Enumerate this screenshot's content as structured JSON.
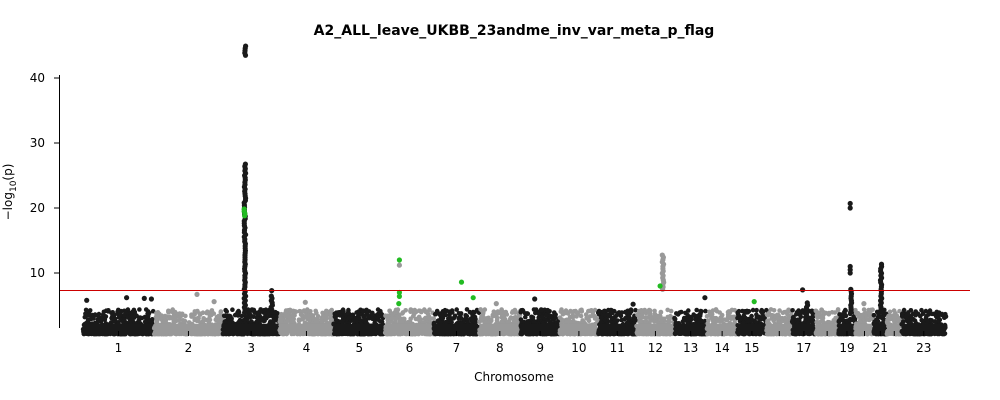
{
  "chart_data": {
    "type": "scatter",
    "title": "A2_ALL_leave_UKBB_23andme_inv_var_meta_p_flag",
    "xlabel": "Chromosome",
    "ylabel_main": "−log",
    "ylabel_sub": "10",
    "ylabel_tail": "(p)",
    "ylim": [
      0,
      46
    ],
    "yticks": [
      "10",
      "20",
      "30",
      "40"
    ],
    "ytick_values": [
      10,
      20,
      30,
      40
    ],
    "grid": false,
    "significance_line": 7.3,
    "colors": {
      "odd": "#1a1a1a",
      "even": "#999999",
      "highlight": "#22bb22",
      "threshold": "#cc0000"
    },
    "chromosomes": [
      {
        "name": "1",
        "label": "1",
        "start": 0,
        "len": 249
      },
      {
        "name": "2",
        "label": "2",
        "start": 249,
        "len": 242
      },
      {
        "name": "3",
        "label": "3",
        "start": 491,
        "len": 198
      },
      {
        "name": "4",
        "label": "4",
        "start": 689,
        "len": 190
      },
      {
        "name": "5",
        "label": "5",
        "start": 879,
        "len": 181
      },
      {
        "name": "6",
        "label": "6",
        "start": 1060,
        "len": 171
      },
      {
        "name": "7",
        "label": "7",
        "start": 1231,
        "len": 159
      },
      {
        "name": "8",
        "label": "8",
        "start": 1390,
        "len": 145
      },
      {
        "name": "9",
        "label": "9",
        "start": 1535,
        "len": 138
      },
      {
        "name": "10",
        "label": "10",
        "start": 1673,
        "len": 134
      },
      {
        "name": "11",
        "label": "11",
        "start": 1807,
        "len": 135
      },
      {
        "name": "12",
        "label": "12",
        "start": 1942,
        "len": 133
      },
      {
        "name": "13",
        "label": "13",
        "start": 2075,
        "len": 114
      },
      {
        "name": "14",
        "label": "14",
        "start": 2189,
        "len": 107
      },
      {
        "name": "15",
        "label": "15",
        "start": 2296,
        "len": 102
      },
      {
        "name": "16",
        "label": "",
        "start": 2398,
        "len": 90
      },
      {
        "name": "17",
        "label": "17",
        "start": 2488,
        "len": 83
      },
      {
        "name": "18",
        "label": "",
        "start": 2571,
        "len": 80
      },
      {
        "name": "19",
        "label": "19",
        "start": 2651,
        "len": 59
      },
      {
        "name": "20",
        "label": "",
        "start": 2710,
        "len": 64
      },
      {
        "name": "21",
        "label": "21",
        "start": 2774,
        "len": 47
      },
      {
        "name": "22",
        "label": "",
        "start": 2821,
        "len": 51
      },
      {
        "name": "23",
        "label": "23",
        "start": 2872,
        "len": 156
      }
    ],
    "xlim": [
      0,
      3028
    ],
    "notable_points": [
      {
        "chr": "1",
        "pos": 13,
        "y": 5.8,
        "color": "odd"
      },
      {
        "chr": "1",
        "pos": 153,
        "y": 6.2,
        "color": "odd"
      },
      {
        "chr": "1",
        "pos": 215,
        "y": 6.1,
        "color": "odd"
      },
      {
        "chr": "1",
        "pos": 240,
        "y": 6.0,
        "color": "odd"
      },
      {
        "chr": "2",
        "pos": 400,
        "y": 6.7,
        "color": "even"
      },
      {
        "chr": "2",
        "pos": 460,
        "y": 5.6,
        "color": "even"
      },
      {
        "chr": "3",
        "pos": 662,
        "y": 7.3,
        "color": "odd"
      },
      {
        "chr": "4",
        "pos": 780,
        "y": 5.5,
        "color": "even"
      },
      {
        "chr": "6",
        "pos": 1110,
        "y": 12.0,
        "color": "highlight"
      },
      {
        "chr": "6",
        "pos": 1110,
        "y": 11.2,
        "color": "even"
      },
      {
        "chr": "6",
        "pos": 1110,
        "y": 7.0,
        "color": "highlight"
      },
      {
        "chr": "6",
        "pos": 1110,
        "y": 6.4,
        "color": "highlight"
      },
      {
        "chr": "6",
        "pos": 1108,
        "y": 5.3,
        "color": "highlight"
      },
      {
        "chr": "7",
        "pos": 1328,
        "y": 8.6,
        "color": "highlight"
      },
      {
        "chr": "7",
        "pos": 1369,
        "y": 6.2,
        "color": "highlight"
      },
      {
        "chr": "8",
        "pos": 1450,
        "y": 5.3,
        "color": "even"
      },
      {
        "chr": "9",
        "pos": 1585,
        "y": 6.0,
        "color": "odd"
      },
      {
        "chr": "11",
        "pos": 1930,
        "y": 5.2,
        "color": "odd"
      },
      {
        "chr": "12",
        "pos": 2025,
        "y": 8.0,
        "color": "highlight"
      },
      {
        "chr": "13",
        "pos": 2182,
        "y": 6.2,
        "color": "odd"
      },
      {
        "chr": "15",
        "pos": 2355,
        "y": 5.6,
        "color": "highlight"
      },
      {
        "chr": "17",
        "pos": 2525,
        "y": 7.4,
        "color": "odd"
      },
      {
        "chr": "19",
        "pos": 2692,
        "y": 20.7,
        "color": "odd"
      },
      {
        "chr": "19",
        "pos": 2692,
        "y": 20.0,
        "color": "odd"
      },
      {
        "chr": "19",
        "pos": 2692,
        "y": 11.0,
        "color": "odd"
      },
      {
        "chr": "19",
        "pos": 2692,
        "y": 10.5,
        "color": "odd"
      },
      {
        "chr": "19",
        "pos": 2692,
        "y": 10.0,
        "color": "odd"
      },
      {
        "chr": "20",
        "pos": 2740,
        "y": 5.3,
        "color": "even"
      }
    ],
    "peak_columns": [
      {
        "chr": "3",
        "pos": 568,
        "ymin": 4,
        "ymax": 27,
        "color": "odd"
      },
      {
        "chr": "3",
        "pos": 568,
        "ymin": 43.5,
        "ymax": 45.2,
        "color": "odd"
      },
      {
        "chr": "3",
        "pos": 568,
        "ymin": 18.8,
        "ymax": 20.2,
        "color": "highlight"
      },
      {
        "chr": "3",
        "pos": 662,
        "ymin": 4,
        "ymax": 6.5,
        "color": "odd"
      },
      {
        "chr": "12",
        "pos": 2035,
        "ymin": 7.5,
        "ymax": 12.8,
        "color": "even"
      },
      {
        "chr": "17",
        "pos": 2540,
        "ymin": 4,
        "ymax": 5.6,
        "color": "odd"
      },
      {
        "chr": "19",
        "pos": 2695,
        "ymin": 4,
        "ymax": 7.8,
        "color": "odd"
      },
      {
        "chr": "21",
        "pos": 2800,
        "ymin": 4,
        "ymax": 11.5,
        "color": "odd"
      }
    ]
  }
}
